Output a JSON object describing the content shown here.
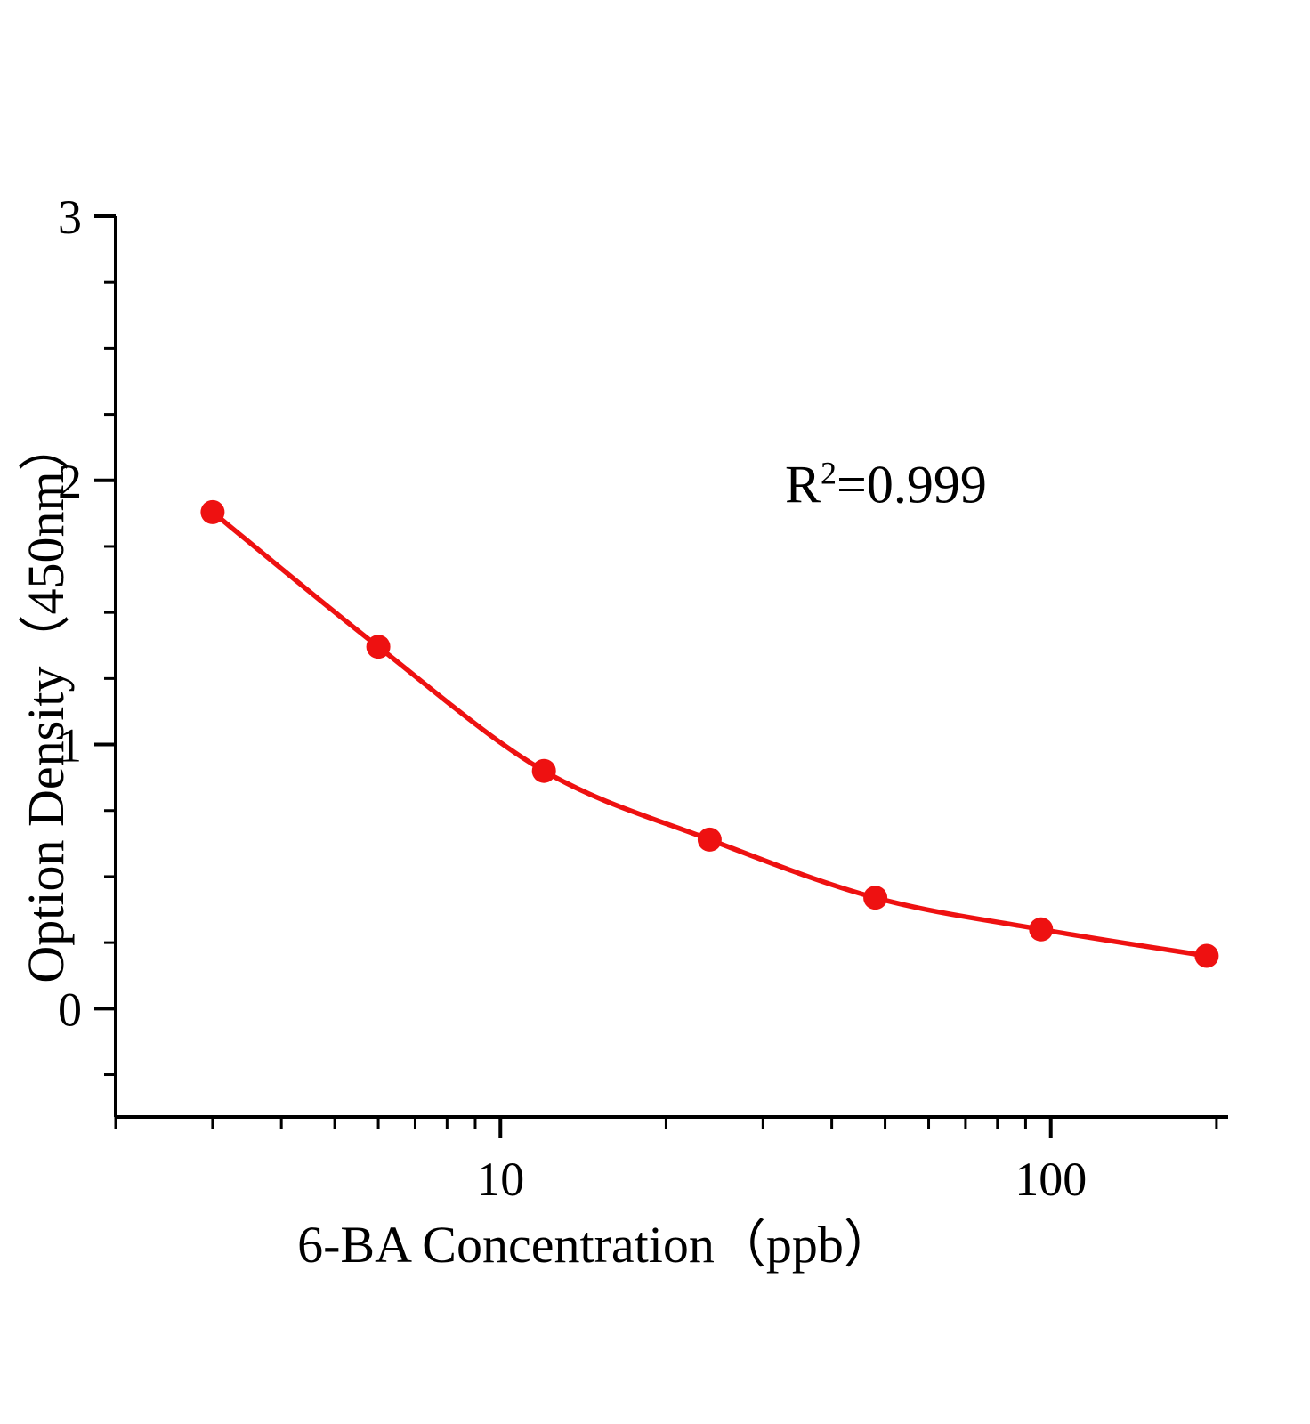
{
  "chart_data": {
    "type": "scatter",
    "title": "",
    "xlabel": "6-BA Concentration（ppb）",
    "ylabel": "Option Density（450nm）",
    "annotation": {
      "base": "R",
      "sup": "2",
      "rest": "=0.999"
    },
    "x": [
      3,
      6,
      12,
      24,
      48,
      96,
      192
    ],
    "y": [
      1.88,
      1.37,
      0.9,
      0.64,
      0.42,
      0.3,
      0.2
    ],
    "x_scale": "log",
    "x_domain": [
      2,
      210
    ],
    "y_domain": [
      -0.41,
      3
    ],
    "x_major_ticks": [
      10,
      100
    ],
    "x_minor_ticks": [
      2,
      3,
      4,
      5,
      6,
      7,
      8,
      9,
      20,
      30,
      40,
      50,
      60,
      70,
      80,
      90,
      200
    ],
    "y_major_ticks": [
      0,
      1,
      2,
      3
    ],
    "y_minor_step": 0.25,
    "series_color": "#ee1111",
    "axis_color": "#000000",
    "grid": false,
    "legend": null
  }
}
